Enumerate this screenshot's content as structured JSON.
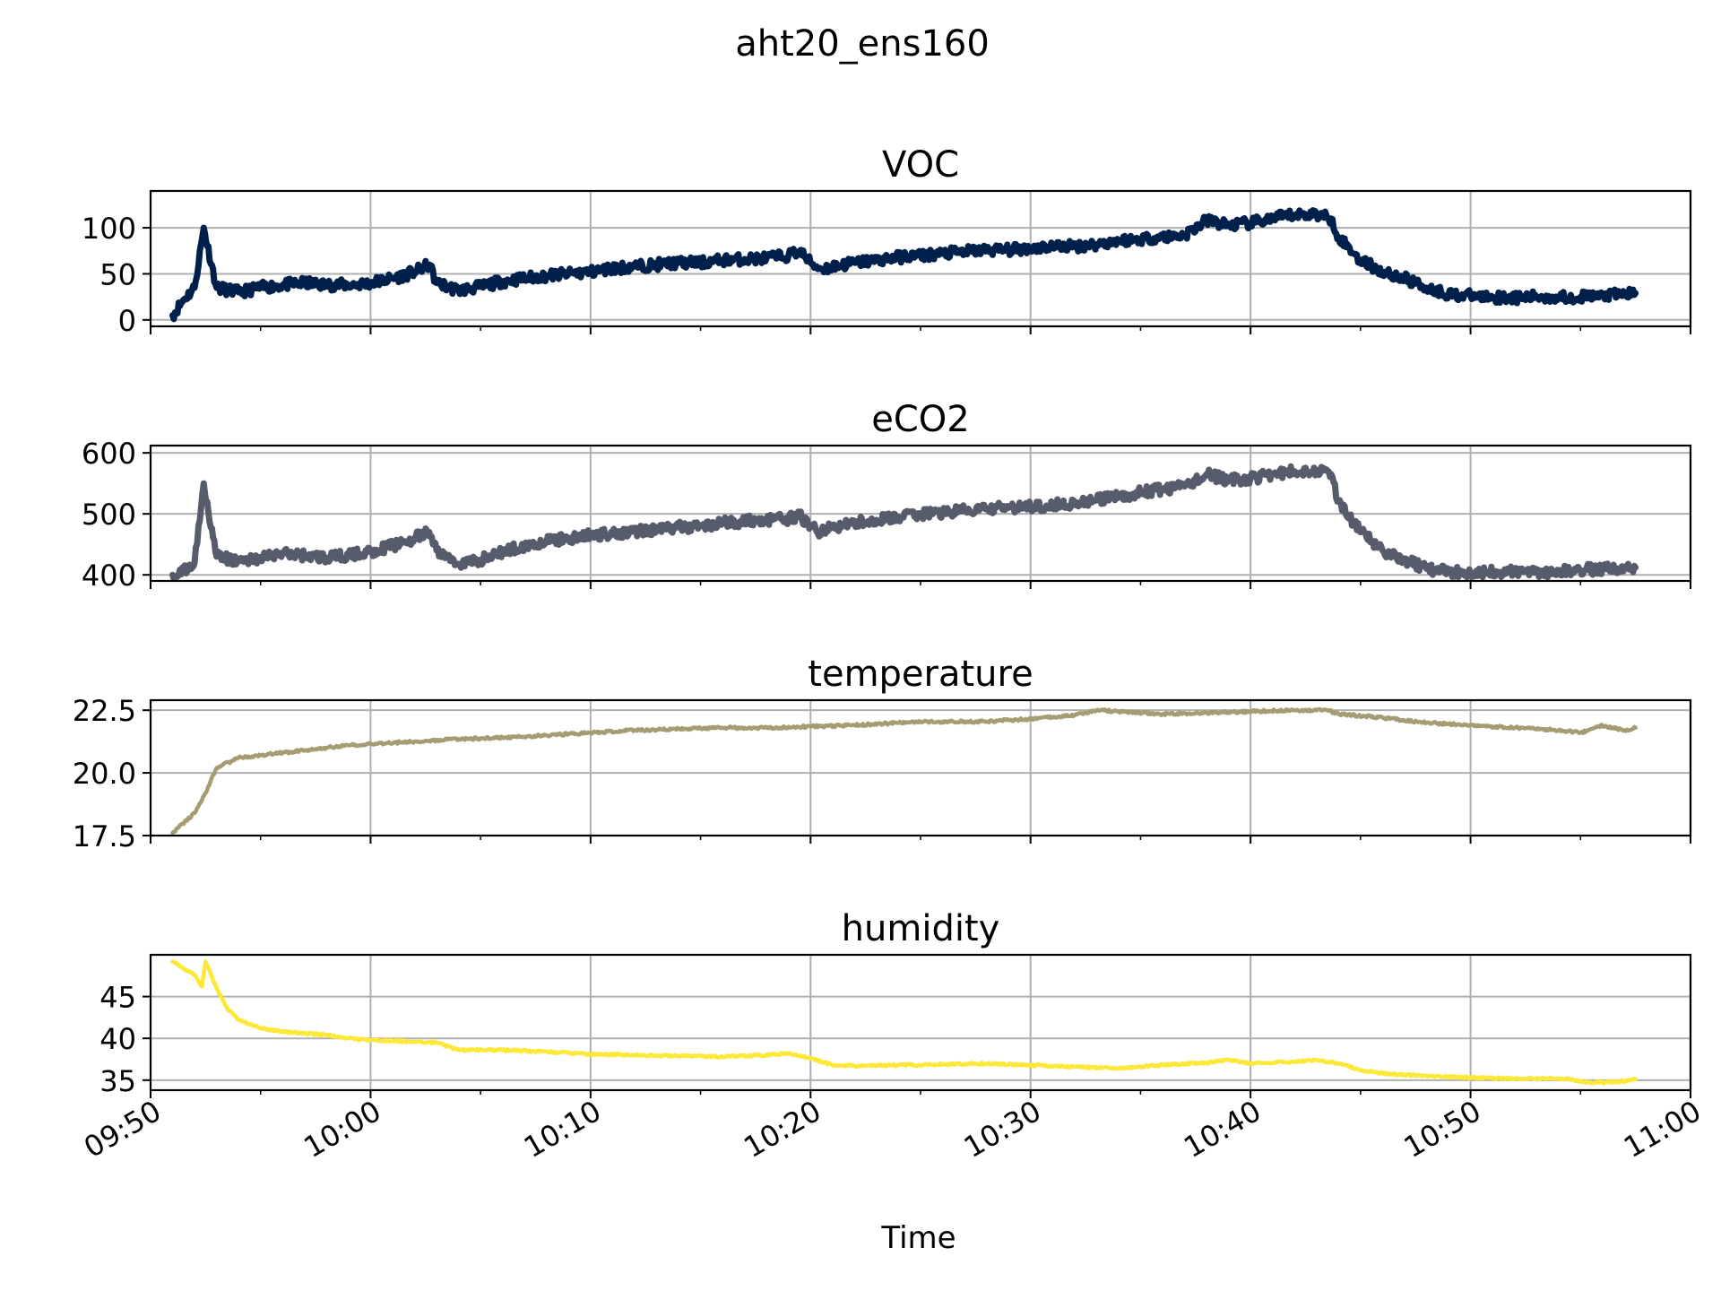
{
  "figure": {
    "suptitle": "aht20_ens160",
    "xlabel": "Time"
  },
  "chart_data": [
    {
      "type": "line",
      "title": "VOC",
      "color": "#00204c",
      "line_width": "thick",
      "x_axis": {
        "start": "09:50",
        "end": "11:00",
        "ticks": [
          "09:50",
          "10:00",
          "10:10",
          "10:20",
          "10:30",
          "10:40",
          "10:50",
          "11:00"
        ]
      },
      "ylim": [
        -7,
        140
      ],
      "yticks": [
        0,
        50,
        100
      ],
      "ytick_labels": [
        "0",
        "50",
        "100"
      ],
      "grid": true,
      "noise": 6,
      "x": [
        "09:51",
        "09:51:30",
        "09:52",
        "09:52:25",
        "09:53",
        "09:54",
        "09:55",
        "09:56",
        "09:57",
        "09:58",
        "09:59",
        "10:00",
        "10:01",
        "10:02",
        "10:02:40",
        "10:03",
        "10:04",
        "10:05",
        "10:06",
        "10:07",
        "10:08",
        "10:09",
        "10:10",
        "10:11",
        "10:12",
        "10:13",
        "10:14",
        "10:15",
        "10:16",
        "10:17",
        "10:18",
        "10:19",
        "10:19:30",
        "10:20",
        "10:20:30",
        "10:21",
        "10:22",
        "10:23",
        "10:24",
        "10:25",
        "10:26",
        "10:27",
        "10:28",
        "10:29",
        "10:30",
        "10:31",
        "10:32",
        "10:33",
        "10:34",
        "10:35",
        "10:36",
        "10:37",
        "10:38",
        "10:39",
        "10:40",
        "10:41",
        "10:42",
        "10:43",
        "10:43:40",
        "10:44",
        "10:45",
        "10:46",
        "10:47",
        "10:48",
        "10:49",
        "10:50",
        "10:51",
        "10:52",
        "10:53",
        "10:54",
        "10:55",
        "10:56",
        "10:57",
        "10:57:30"
      ],
      "values": [
        5,
        22,
        35,
        100,
        35,
        30,
        35,
        38,
        40,
        38,
        38,
        40,
        45,
        52,
        60,
        40,
        32,
        36,
        42,
        45,
        48,
        50,
        52,
        56,
        58,
        60,
        62,
        62,
        65,
        66,
        67,
        70,
        75,
        62,
        55,
        58,
        62,
        65,
        68,
        70,
        72,
        74,
        76,
        76,
        78,
        80,
        80,
        82,
        86,
        88,
        90,
        92,
        108,
        103,
        105,
        110,
        114,
        115,
        110,
        90,
        65,
        52,
        45,
        35,
        28,
        26,
        25,
        24,
        25,
        25,
        25,
        26,
        28,
        29
      ]
    },
    {
      "type": "line",
      "title": "eCO2",
      "color": "#575c6d",
      "line_width": "thick",
      "x_axis": {
        "start": "09:50",
        "end": "11:00",
        "ticks": [
          "09:50",
          "10:00",
          "10:10",
          "10:20",
          "10:30",
          "10:40",
          "10:50",
          "11:00"
        ]
      },
      "ylim": [
        390,
        612
      ],
      "yticks": [
        400,
        500,
        600
      ],
      "ytick_labels": [
        "400",
        "500",
        "600"
      ],
      "grid": true,
      "noise": 9,
      "x": [
        "09:51",
        "09:51:30",
        "09:52",
        "09:52:25",
        "09:53",
        "09:54",
        "09:55",
        "09:56",
        "09:57",
        "09:58",
        "09:59",
        "10:00",
        "10:01",
        "10:02",
        "10:02:40",
        "10:03",
        "10:04",
        "10:05",
        "10:06",
        "10:07",
        "10:08",
        "10:09",
        "10:10",
        "10:11",
        "10:12",
        "10:13",
        "10:14",
        "10:15",
        "10:16",
        "10:17",
        "10:18",
        "10:19",
        "10:19:30",
        "10:20",
        "10:20:30",
        "10:21",
        "10:22",
        "10:23",
        "10:24",
        "10:25",
        "10:26",
        "10:27",
        "10:28",
        "10:29",
        "10:30",
        "10:31",
        "10:32",
        "10:33",
        "10:34",
        "10:35",
        "10:36",
        "10:37",
        "10:38",
        "10:39",
        "10:40",
        "10:41",
        "10:42",
        "10:43",
        "10:43:40",
        "10:44",
        "10:45",
        "10:46",
        "10:47",
        "10:48",
        "10:49",
        "10:50",
        "10:51",
        "10:52",
        "10:53",
        "10:54",
        "10:55",
        "10:56",
        "10:57",
        "10:57:30"
      ],
      "values": [
        400,
        405,
        420,
        550,
        430,
        422,
        428,
        435,
        432,
        428,
        432,
        438,
        448,
        460,
        470,
        440,
        418,
        425,
        438,
        448,
        455,
        460,
        465,
        468,
        472,
        475,
        478,
        480,
        485,
        488,
        490,
        492,
        498,
        478,
        470,
        478,
        485,
        490,
        495,
        500,
        502,
        505,
        508,
        510,
        512,
        515,
        518,
        522,
        528,
        535,
        540,
        545,
        565,
        555,
        558,
        565,
        570,
        572,
        565,
        520,
        470,
        440,
        425,
        410,
        405,
        405,
        405,
        405,
        405,
        405,
        408,
        410,
        410,
        412
      ]
    },
    {
      "type": "line",
      "title": "temperature",
      "color": "#a59c74",
      "line_width": "medium",
      "x_axis": {
        "start": "09:50",
        "end": "11:00",
        "ticks": [
          "09:50",
          "10:00",
          "10:10",
          "10:20",
          "10:30",
          "10:40",
          "10:50",
          "11:00"
        ]
      },
      "ylim": [
        17.5,
        22.9
      ],
      "yticks": [
        17.5,
        20.0,
        22.5
      ],
      "ytick_labels": [
        "17.5",
        "20.0",
        "22.5"
      ],
      "grid": true,
      "noise": 0.05,
      "x": [
        "09:51",
        "09:52",
        "09:52:30",
        "09:53",
        "09:54",
        "09:55",
        "09:56",
        "09:57",
        "09:58",
        "09:59",
        "10:00",
        "10:02",
        "10:04",
        "10:06",
        "10:08",
        "10:10",
        "10:12",
        "10:14",
        "10:16",
        "10:18",
        "10:20",
        "10:22",
        "10:24",
        "10:26",
        "10:28",
        "10:30",
        "10:32",
        "10:33",
        "10:34",
        "10:36",
        "10:38",
        "10:40",
        "10:42",
        "10:43:30",
        "10:44",
        "10:46",
        "10:48",
        "10:50",
        "10:52",
        "10:54",
        "10:55",
        "10:56",
        "10:57",
        "10:57:30"
      ],
      "values": [
        17.6,
        18.4,
        19.2,
        20.2,
        20.6,
        20.7,
        20.8,
        20.9,
        21.0,
        21.1,
        21.15,
        21.25,
        21.35,
        21.4,
        21.5,
        21.6,
        21.7,
        21.75,
        21.8,
        21.8,
        21.85,
        21.9,
        22.0,
        22.05,
        22.05,
        22.15,
        22.3,
        22.5,
        22.45,
        22.35,
        22.4,
        22.45,
        22.5,
        22.5,
        22.35,
        22.2,
        22.0,
        21.9,
        21.8,
        21.7,
        21.6,
        21.9,
        21.7,
        21.8
      ]
    },
    {
      "type": "line",
      "title": "humidity",
      "color": "#fde737",
      "line_width": "medium",
      "x_axis": {
        "start": "09:50",
        "end": "11:00",
        "ticks": [
          "09:50",
          "10:00",
          "10:10",
          "10:20",
          "10:30",
          "10:40",
          "10:50",
          "11:00"
        ]
      },
      "ylim": [
        33.8,
        50.0
      ],
      "yticks": [
        35,
        40,
        45
      ],
      "ytick_labels": [
        "35",
        "40",
        "45"
      ],
      "grid": true,
      "noise": 0.12,
      "x": [
        "09:51",
        "09:52",
        "09:52:20",
        "09:52:30",
        "09:53",
        "09:53:30",
        "09:54",
        "09:55",
        "09:56",
        "09:57",
        "09:58",
        "09:59",
        "10:00",
        "10:02",
        "10:03",
        "10:04",
        "10:06",
        "10:08",
        "10:10",
        "10:12",
        "10:14",
        "10:16",
        "10:18",
        "10:19",
        "10:20",
        "10:21",
        "10:22",
        "10:24",
        "10:26",
        "10:28",
        "10:30",
        "10:32",
        "10:34",
        "10:36",
        "10:38",
        "10:39",
        "10:40",
        "10:42",
        "10:43",
        "10:44",
        "10:45",
        "10:46",
        "10:48",
        "10:50",
        "10:52",
        "10:54",
        "10:54:30",
        "10:55",
        "10:56",
        "10:57",
        "10:57:30"
      ],
      "values": [
        49.2,
        47.6,
        46.2,
        49.2,
        46.0,
        43.5,
        42.2,
        41.2,
        40.8,
        40.6,
        40.4,
        40.0,
        39.8,
        39.6,
        39.5,
        38.6,
        38.6,
        38.4,
        38.1,
        38.0,
        37.9,
        37.8,
        38.0,
        38.2,
        37.6,
        36.8,
        36.7,
        36.8,
        36.9,
        37.0,
        36.8,
        36.6,
        36.4,
        36.8,
        37.1,
        37.4,
        37.0,
        37.2,
        37.4,
        37.0,
        36.2,
        35.8,
        35.5,
        35.3,
        35.2,
        35.2,
        35.1,
        34.8,
        34.7,
        34.9,
        35.1
      ]
    }
  ]
}
